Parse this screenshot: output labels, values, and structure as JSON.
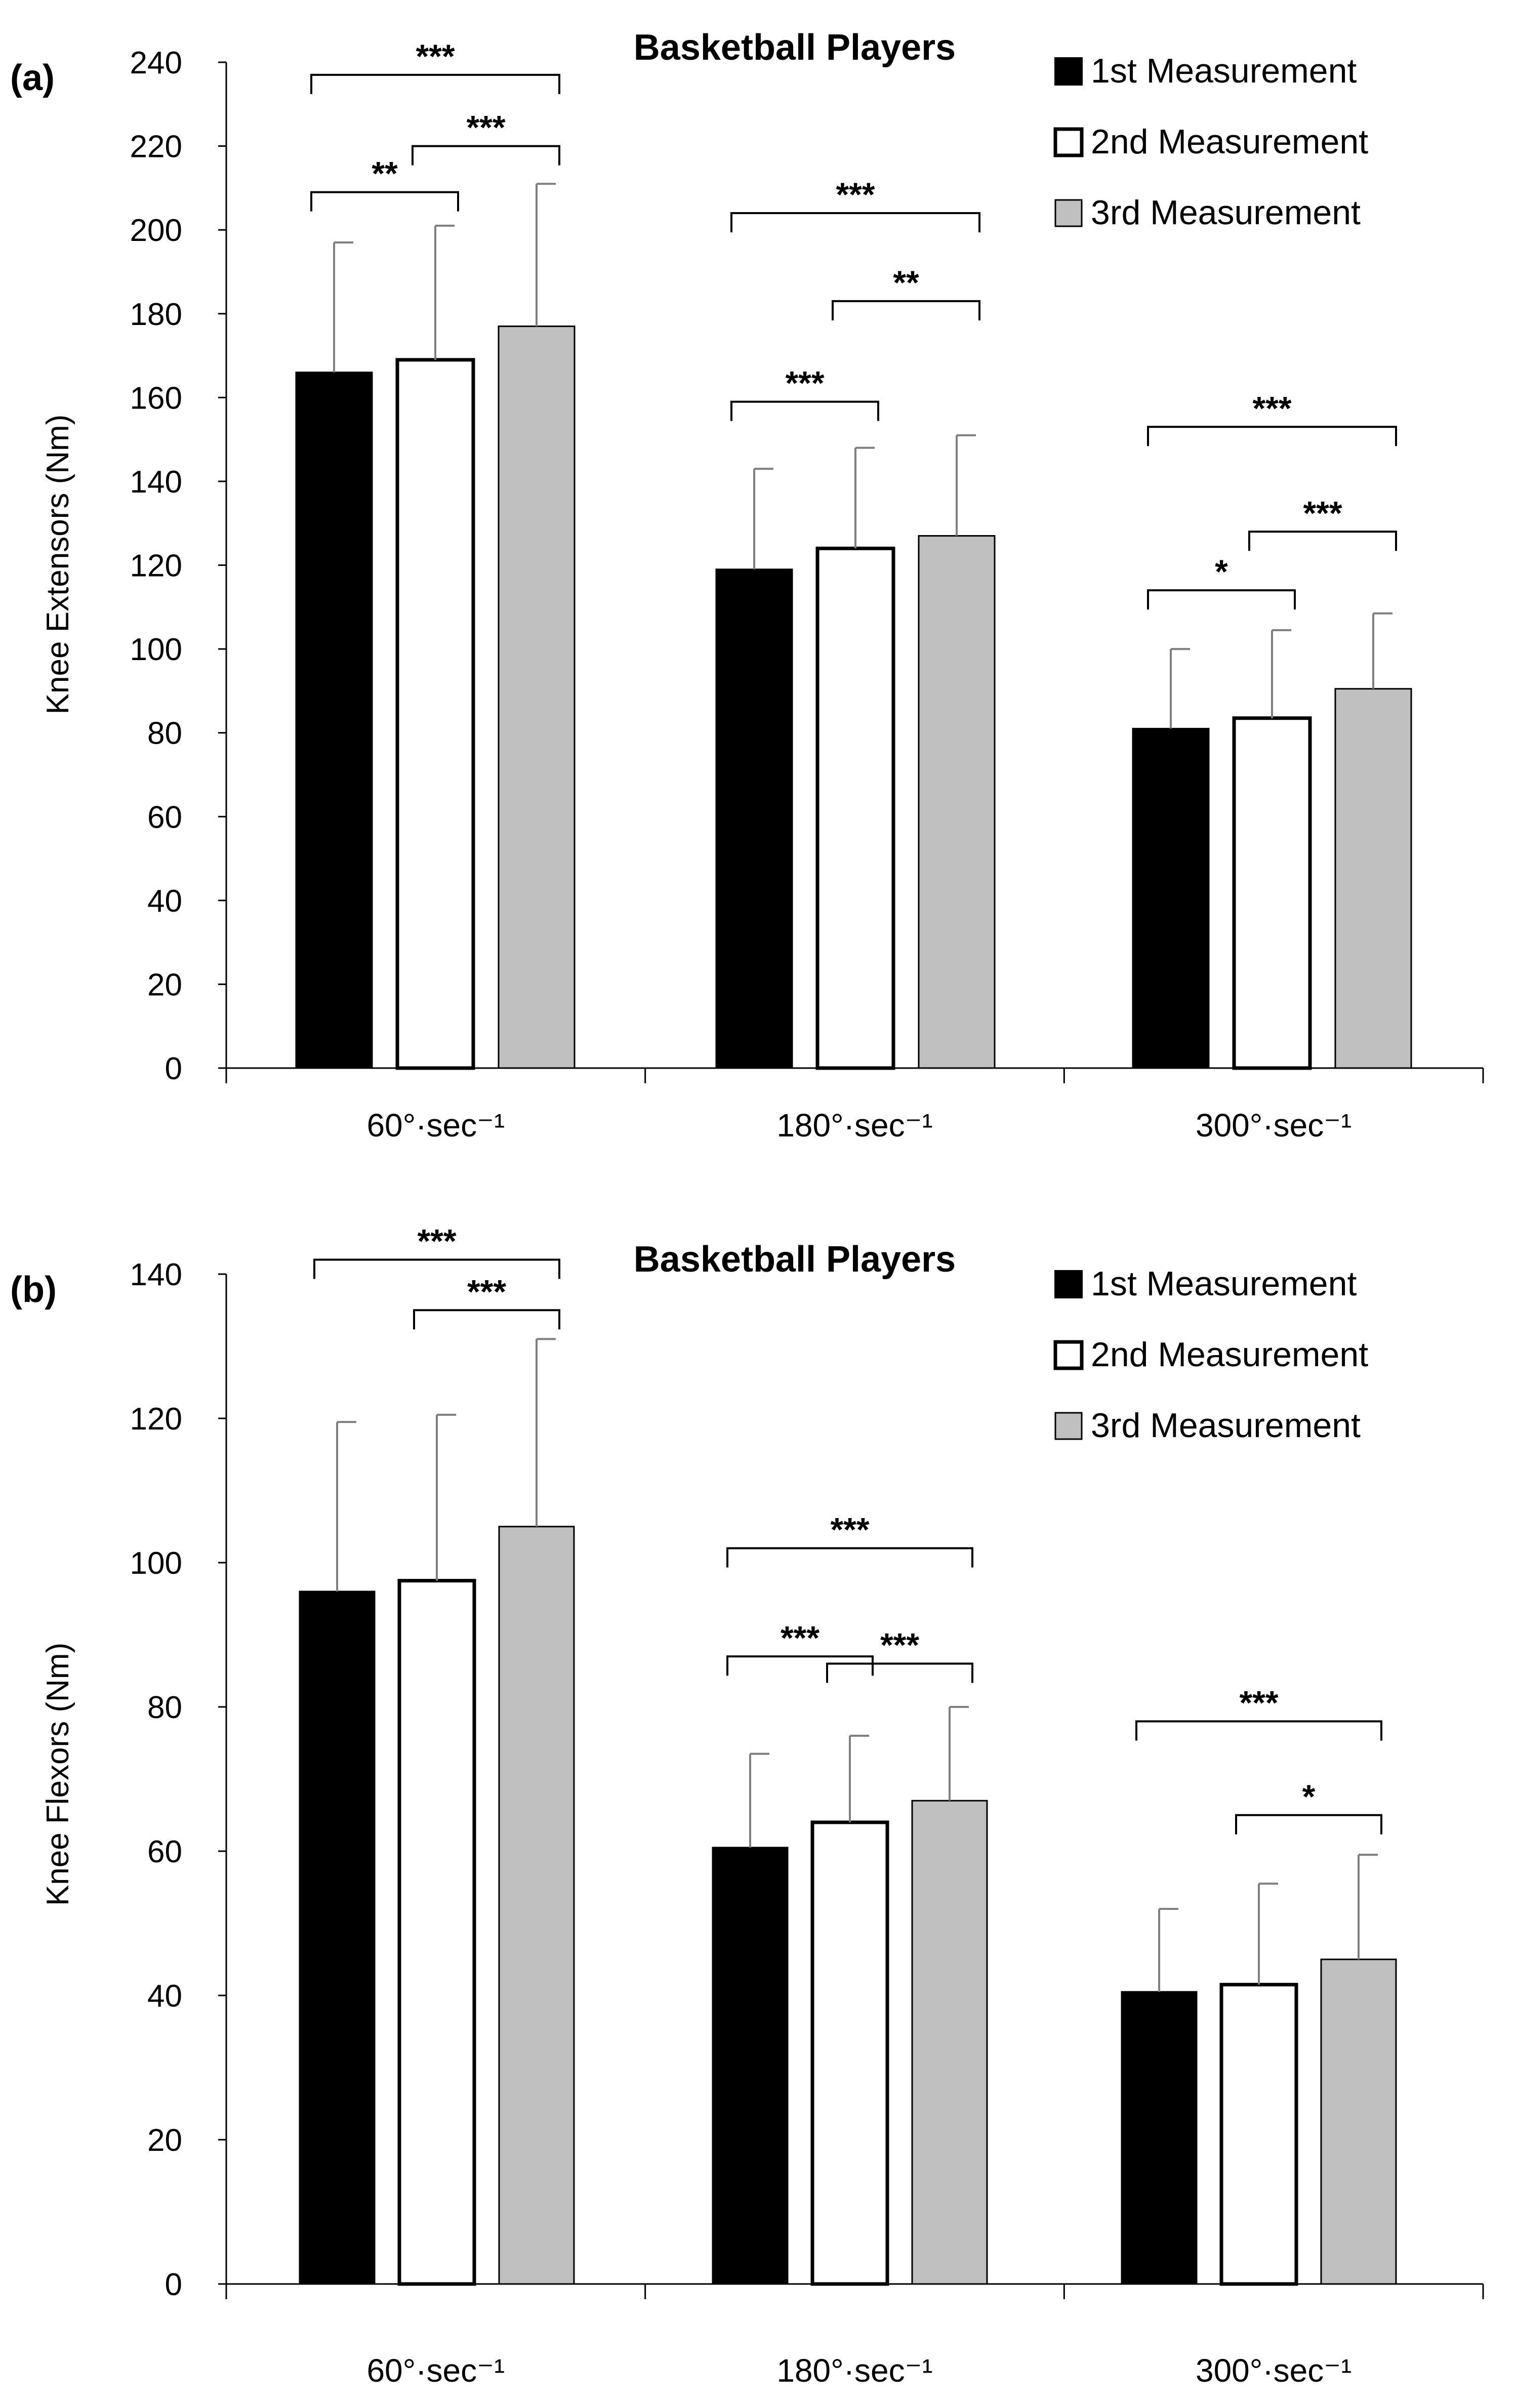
{
  "chart_data": [
    {
      "type": "bar",
      "panel_label": "(a)",
      "title": "Basketball Players",
      "xlabel": "",
      "ylabel": "Knee Extensors (Nm)",
      "ylim": [
        0,
        240
      ],
      "yticks": [
        "0",
        "20",
        "40",
        "60",
        "80",
        "100",
        "120",
        "140",
        "160",
        "180",
        "200",
        "220",
        "240"
      ],
      "categories": [
        "60°·sec⁻¹",
        "180°·sec⁻¹",
        "300°·sec⁻¹"
      ],
      "series": [
        {
          "name": "1st Measurement",
          "fill": "#000000",
          "values": [
            166,
            119,
            81
          ],
          "errors": [
            31,
            24,
            19
          ]
        },
        {
          "name": "2nd Measurement",
          "fill": "#ffffff",
          "values": [
            169,
            124,
            83.5
          ],
          "errors": [
            32,
            24,
            21
          ]
        },
        {
          "name": "3rd Measurement",
          "fill": "#c0c0c0",
          "values": [
            177,
            127,
            90.5
          ],
          "errors": [
            34,
            24,
            18
          ]
        }
      ],
      "significance": [
        {
          "category": 0,
          "from": 0,
          "to": 2,
          "y": 237,
          "label": "***"
        },
        {
          "category": 0,
          "from": 0,
          "to": 1,
          "y": 209,
          "label": "**"
        },
        {
          "category": 0,
          "from": 1,
          "to": 2,
          "y": 220,
          "label": "***"
        },
        {
          "category": 1,
          "from": 0,
          "to": 2,
          "y": 204,
          "label": "***"
        },
        {
          "category": 1,
          "from": 1,
          "to": 2,
          "y": 183,
          "label": "**"
        },
        {
          "category": 1,
          "from": 0,
          "to": 1,
          "y": 159,
          "label": "***"
        },
        {
          "category": 2,
          "from": 0,
          "to": 2,
          "y": 153,
          "label": "***"
        },
        {
          "category": 2,
          "from": 1,
          "to": 2,
          "y": 128,
          "label": "***"
        },
        {
          "category": 2,
          "from": 0,
          "to": 1,
          "y": 114,
          "label": "*"
        }
      ],
      "legend_position": "top-right"
    },
    {
      "type": "bar",
      "panel_label": "(b)",
      "title": "Basketball Players",
      "xlabel": "",
      "ylabel": "Knee Flexors (Nm)",
      "ylim": [
        0,
        140
      ],
      "yticks": [
        "0",
        "20",
        "40",
        "60",
        "80",
        "100",
        "120",
        "140"
      ],
      "categories": [
        "60°·sec⁻¹",
        "180°·sec⁻¹",
        "300°·sec⁻¹"
      ],
      "series": [
        {
          "name": "1st Measurement",
          "fill": "#000000",
          "values": [
            96,
            60.5,
            40.5
          ],
          "errors": [
            23.5,
            13,
            11.5
          ]
        },
        {
          "name": "2nd Measurement",
          "fill": "#ffffff",
          "values": [
            97.5,
            64,
            41.5
          ],
          "errors": [
            23,
            12,
            14
          ]
        },
        {
          "name": "3rd Measurement",
          "fill": "#c0c0c0",
          "values": [
            105,
            67,
            45
          ],
          "errors": [
            26,
            13,
            14.5
          ]
        }
      ],
      "significance": [
        {
          "category": 0,
          "from": 0,
          "to": 2,
          "y": 142,
          "label": "***"
        },
        {
          "category": 0,
          "from": 1,
          "to": 2,
          "y": 135,
          "label": "***"
        },
        {
          "category": 1,
          "from": 0,
          "to": 2,
          "y": 102,
          "label": "***"
        },
        {
          "category": 1,
          "from": 0,
          "to": 1,
          "y": 87,
          "label": "***"
        },
        {
          "category": 1,
          "from": 1,
          "to": 2,
          "y": 86,
          "label": "***"
        },
        {
          "category": 2,
          "from": 0,
          "to": 2,
          "y": 78,
          "label": "***"
        },
        {
          "category": 2,
          "from": 1,
          "to": 2,
          "y": 65,
          "label": "*"
        }
      ],
      "legend_position": "top-right"
    }
  ]
}
